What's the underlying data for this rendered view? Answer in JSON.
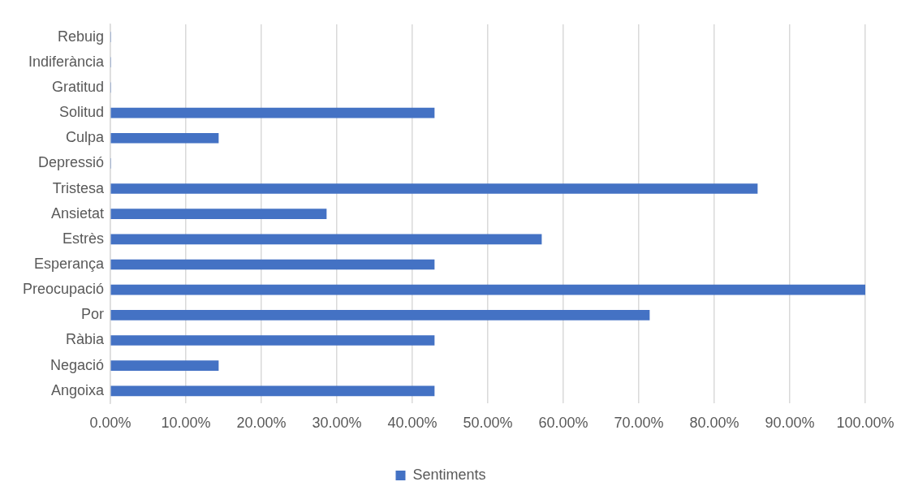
{
  "chart_data": {
    "type": "bar",
    "orientation": "horizontal",
    "categories": [
      "Rebuig",
      "Indiferància",
      "Gratitud",
      "Solitud",
      "Culpa",
      "Depressió",
      "Tristesa",
      "Ansietat",
      "Estrès",
      "Esperança",
      "Preocupació",
      "Por",
      "Ràbia",
      "Negació",
      "Angoixa"
    ],
    "series": [
      {
        "name": "Sentiments",
        "color": "#4472c4",
        "values": [
          0,
          0,
          0,
          42.9,
          14.3,
          0,
          85.7,
          28.6,
          57.1,
          42.9,
          100,
          71.4,
          42.9,
          14.3,
          42.9
        ]
      }
    ],
    "xlim": [
      0,
      100
    ],
    "xticks": [
      {
        "value": 0,
        "label": "0.00%"
      },
      {
        "value": 10,
        "label": "10.00%"
      },
      {
        "value": 20,
        "label": "20.00%"
      },
      {
        "value": 30,
        "label": "30.00%"
      },
      {
        "value": 40,
        "label": "40.00%"
      },
      {
        "value": 50,
        "label": "50.00%"
      },
      {
        "value": 60,
        "label": "60.00%"
      },
      {
        "value": 70,
        "label": "70.00%"
      },
      {
        "value": 80,
        "label": "80.00%"
      },
      {
        "value": 90,
        "label": "90.00%"
      },
      {
        "value": 100,
        "label": "100.00%"
      }
    ],
    "grid": "x",
    "legend": "bottom"
  }
}
